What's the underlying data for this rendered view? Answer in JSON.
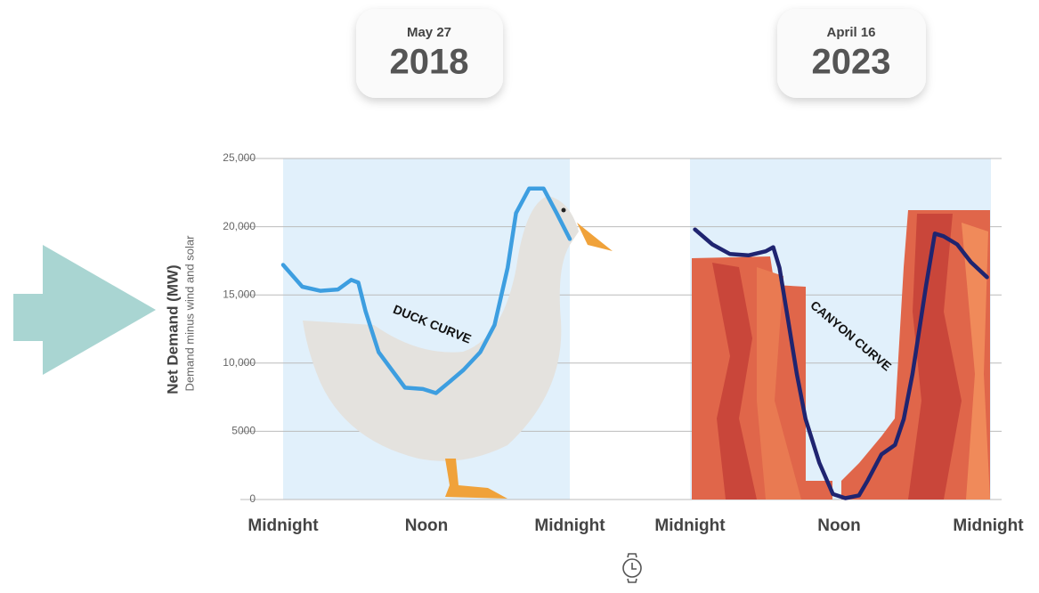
{
  "chart_data": [
    {
      "type": "line",
      "date": "May 27",
      "year": "2018",
      "annotation": "DUCK CURVE",
      "ylabel": "Net Demand (MW)",
      "ylabel_note": "Demand minus wind and solar",
      "xlim": [
        0,
        24
      ],
      "xticks": [
        {
          "value": 0,
          "label": "Midnight"
        },
        {
          "value": 12,
          "label": "Noon"
        },
        {
          "value": 24,
          "label": "Midnight"
        }
      ],
      "ylim": [
        0,
        25000
      ],
      "yticks": [
        0,
        5000,
        {
          "value": 10000,
          "label": "10,000"
        },
        {
          "value": 15000,
          "label": "15,000"
        },
        {
          "value": 20000,
          "label": "20,000"
        },
        {
          "value": 25000,
          "label": "25,000"
        }
      ],
      "grid": true,
      "color": "#3d9ee0",
      "x": [
        0,
        1.6,
        3.1,
        4.6,
        5.7,
        6.3,
        6.9,
        8.0,
        9.1,
        10.2,
        11.7,
        12.8,
        13.9,
        15.1,
        16.5,
        17.7,
        18.8,
        19.5,
        20.6,
        21.8,
        22.9,
        24
      ],
      "values": [
        17200,
        15600,
        15300,
        15400,
        16100,
        15900,
        13800,
        10800,
        9500,
        8200,
        8100,
        7800,
        8600,
        9500,
        10800,
        12800,
        17000,
        21000,
        22800,
        22800,
        21000,
        19100
      ]
    },
    {
      "type": "line",
      "date": "April 16",
      "year": "2023",
      "annotation": "CANYON CURVE",
      "xlim": [
        0,
        24
      ],
      "xticks": [
        {
          "value": 0,
          "label": "Midnight"
        },
        {
          "value": 12,
          "label": "Noon"
        },
        {
          "value": 24,
          "label": "Midnight"
        }
      ],
      "ylim": [
        0,
        25000
      ],
      "yticks": [
        0,
        5000,
        10000,
        15000,
        20000,
        25000
      ],
      "grid": true,
      "color": "#1f2470",
      "x": [
        0.4,
        1.8,
        3.2,
        4.7,
        6.1,
        6.7,
        7.2,
        7.9,
        8.6,
        9.3,
        10.4,
        11.5,
        12.5,
        13.6,
        14.3,
        15.4,
        16.5,
        17.2,
        17.9,
        19.0,
        19.7,
        20.4,
        21.5,
        22.6,
        23.9
      ],
      "values": [
        19800,
        18700,
        18000,
        17900,
        18200,
        18500,
        17000,
        13100,
        9200,
        5900,
        2700,
        400,
        100,
        300,
        1400,
        3300,
        4000,
        5900,
        9200,
        15700,
        19500,
        19300,
        18700,
        17400,
        16300
      ]
    }
  ]
}
